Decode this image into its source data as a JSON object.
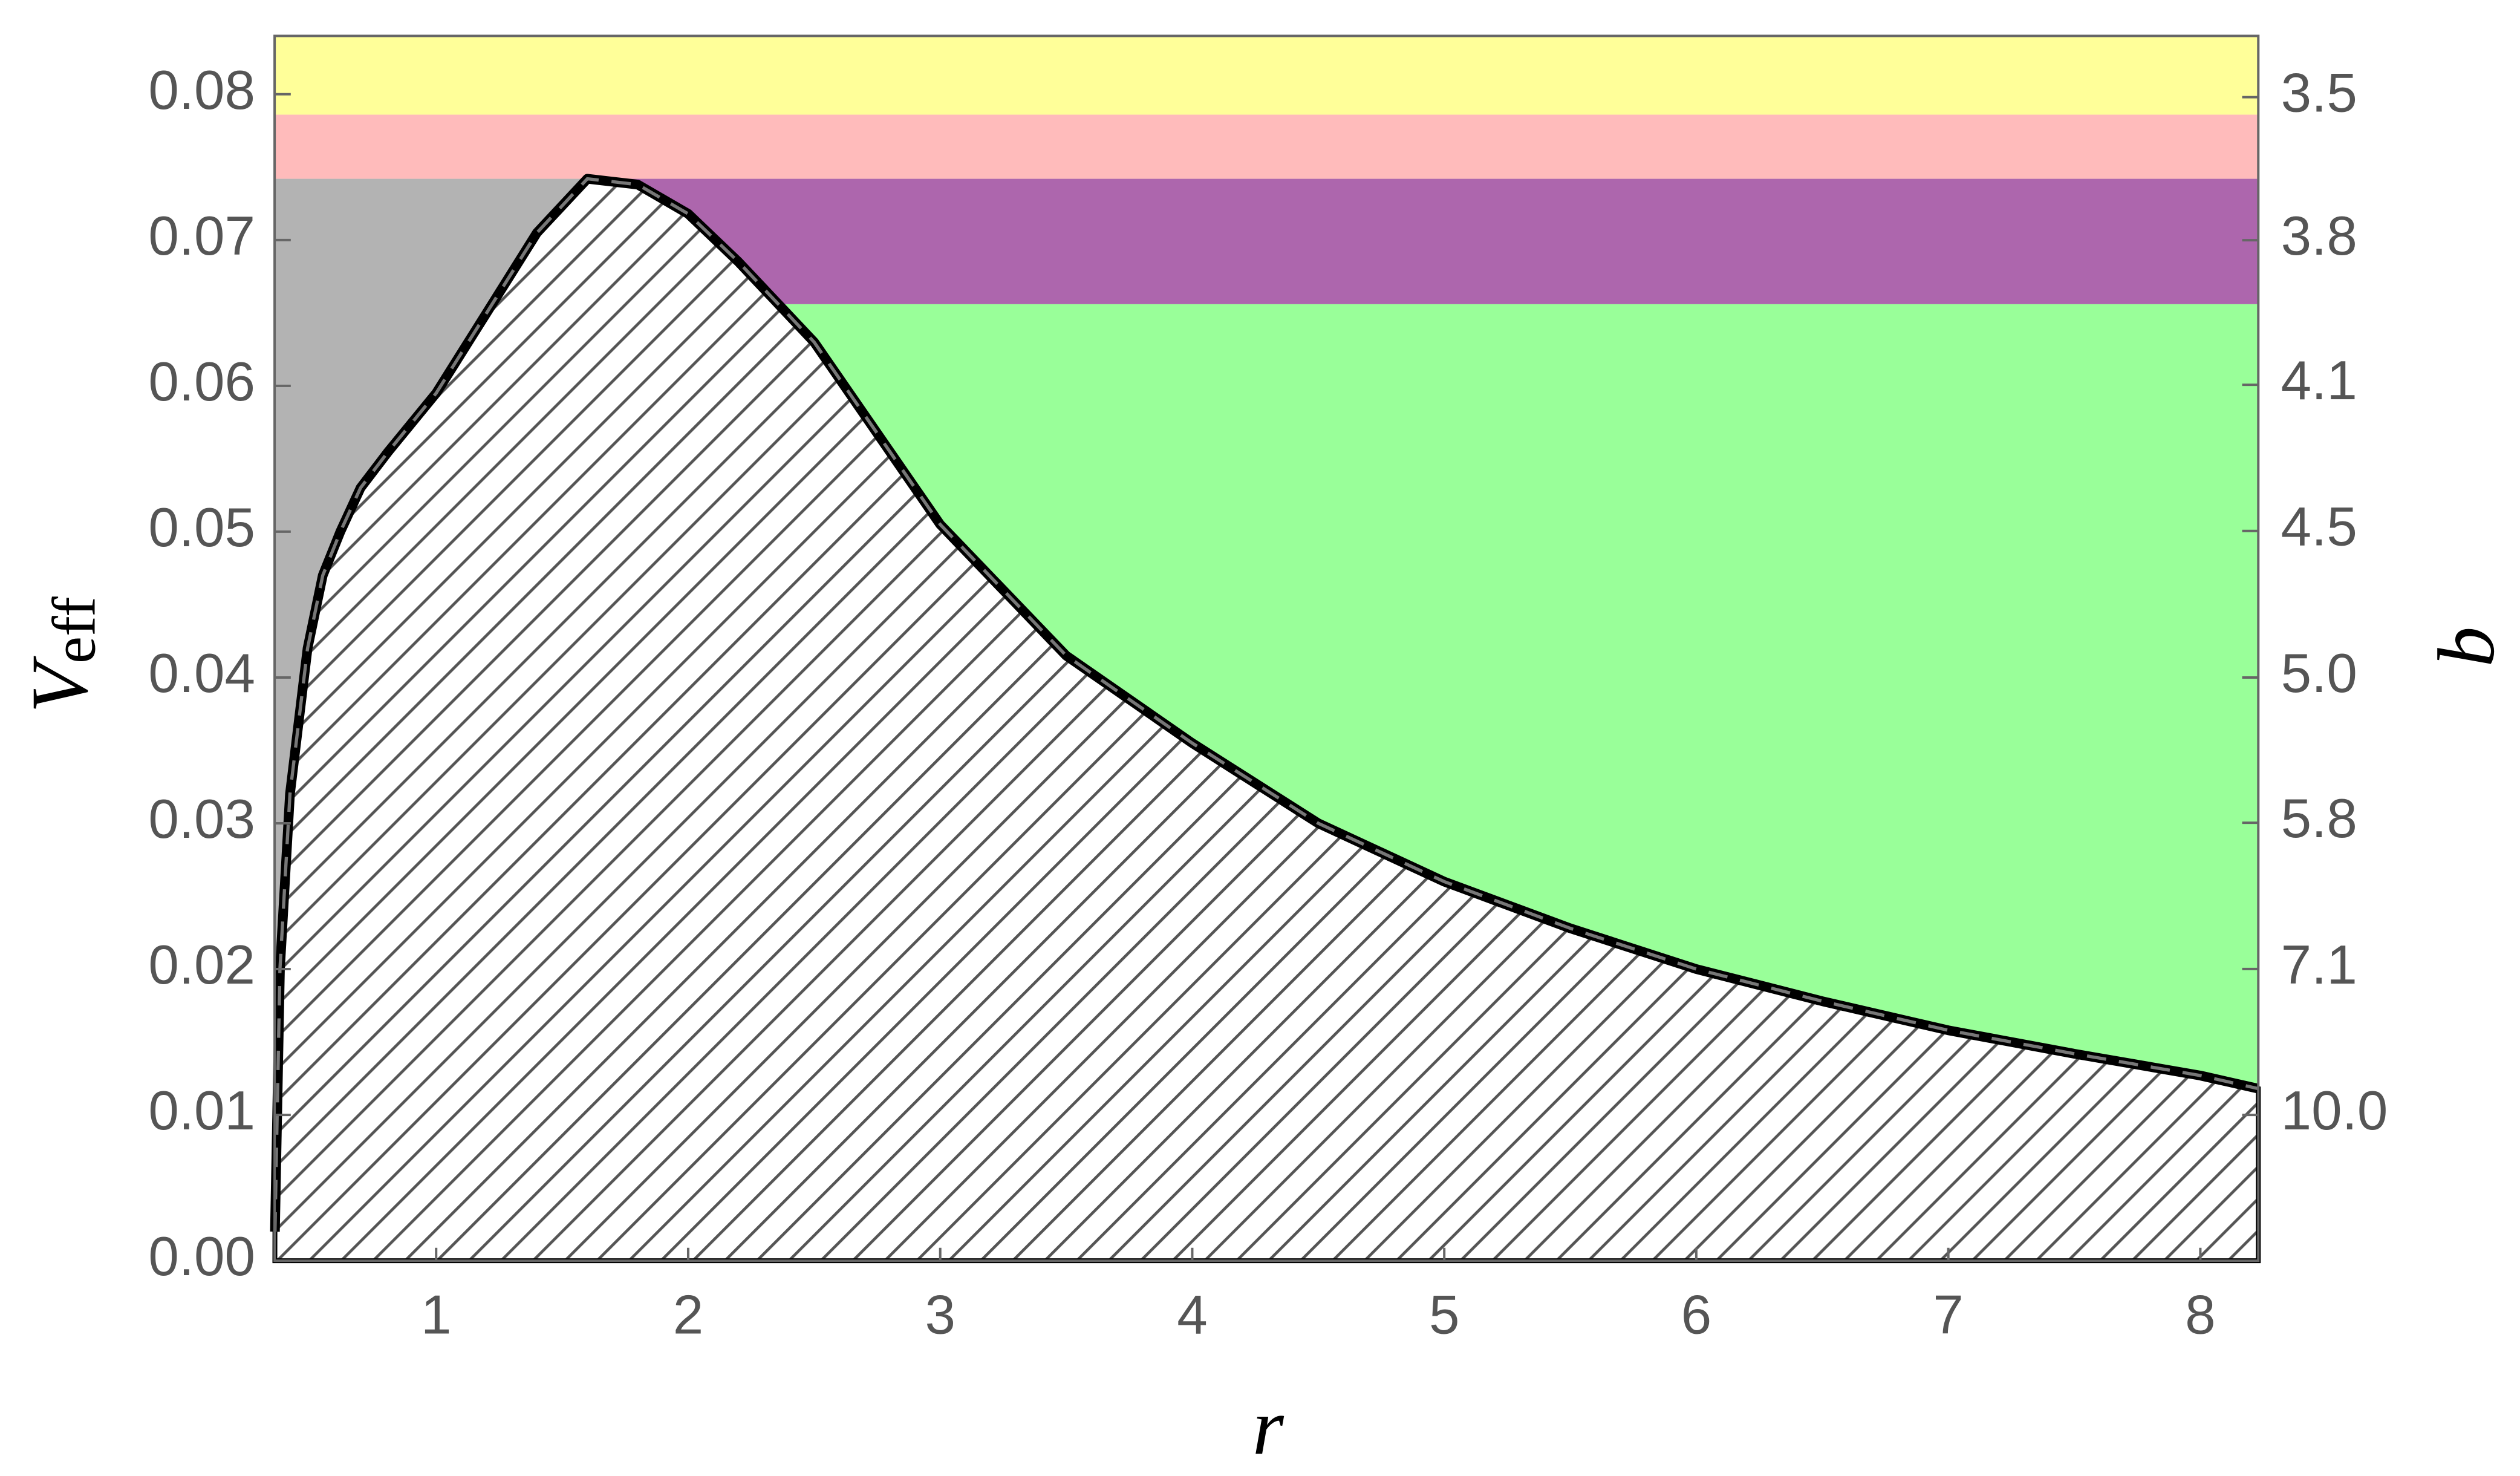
{
  "chart_data": {
    "type": "line",
    "xlabel": "r",
    "ylabel": "V",
    "ylabel_sub": "eff",
    "y2label": "b",
    "x": [
      0.36,
      0.38,
      0.42,
      0.49,
      0.55,
      0.62,
      0.7,
      0.81,
      1.0,
      1.2,
      1.4,
      1.6,
      1.8,
      2.0,
      2.2,
      2.5,
      3.0,
      3.5,
      4.0,
      4.5,
      5.0,
      5.5,
      6.0,
      6.5,
      7.0,
      7.5,
      8.0,
      8.23
    ],
    "values": [
      0.002,
      0.02,
      0.032,
      0.042,
      0.047,
      0.05,
      0.053,
      0.0555,
      0.0595,
      0.065,
      0.0705,
      0.0742,
      0.0738,
      0.0718,
      0.0685,
      0.063,
      0.0505,
      0.0415,
      0.0355,
      0.03,
      0.026,
      0.0228,
      0.02,
      0.0178,
      0.0158,
      0.0142,
      0.0127,
      0.0118
    ],
    "color": "#000000",
    "bands": [
      {
        "color": "#ffff99",
        "x": [
          0.359,
          8.23
        ],
        "y": [
          0.0786,
          0.084
        ]
      },
      {
        "color": "#ffbbbb",
        "x": [
          0.359,
          8.23
        ],
        "y": [
          0.0742,
          0.0786
        ]
      },
      {
        "color": "#b3b3b3",
        "x": [
          0.359,
          1.6
        ],
        "y": [
          0,
          0.0742
        ]
      },
      {
        "color": "#ad66ad",
        "x": [
          1.6,
          8.23
        ],
        "y": [
          0.0656,
          0.0742
        ]
      },
      {
        "color": "#99ff99",
        "x": [
          1.6,
          8.23
        ],
        "y": [
          0,
          0.0656
        ]
      }
    ],
    "xlim": [
      0.359,
      8.23
    ],
    "xticks": [
      1,
      2,
      3,
      4,
      5,
      6,
      7,
      8
    ],
    "ylim": [
      0,
      0.084
    ],
    "yticks": [
      {
        "value": 0,
        "label": "0.00"
      },
      0.01,
      0.02,
      0.03,
      0.04,
      0.05,
      0.06,
      0.07,
      0.08
    ],
    "y2scale": "inverse-square",
    "y2ticks": [
      {
        "value": 3.54,
        "label": "3.5"
      },
      {
        "value": 3.78,
        "label": "3.8"
      },
      {
        "value": 4.08,
        "label": "4.1"
      },
      {
        "value": 4.47,
        "label": "4.5"
      },
      {
        "value": 5,
        "label": "5.0"
      },
      {
        "value": 5.77,
        "label": "5.8"
      },
      {
        "value": 7.07,
        "label": "7.1"
      },
      {
        "value": 10,
        "label": "10.0"
      }
    ]
  }
}
